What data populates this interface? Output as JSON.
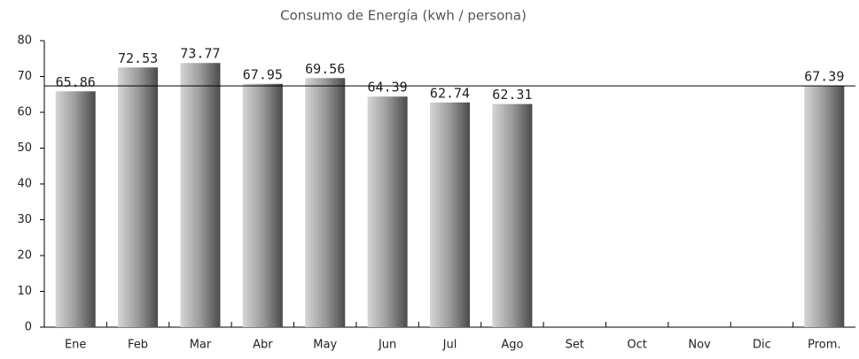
{
  "chart_data": {
    "type": "bar",
    "title": "Consumo de Energía (kwh / persona)",
    "categories": [
      "Ene",
      "Feb",
      "Mar",
      "Abr",
      "May",
      "Jun",
      "Jul",
      "Ago",
      "Set",
      "Oct",
      "Nov",
      "Dic",
      "Prom."
    ],
    "values": [
      65.86,
      72.53,
      73.77,
      67.95,
      69.56,
      64.39,
      62.74,
      62.31,
      null,
      null,
      null,
      null,
      67.39
    ],
    "color": "#8a8a8a",
    "ylim": [
      0,
      80
    ],
    "yticks": [
      0,
      10,
      20,
      30,
      40,
      50,
      60,
      70,
      80
    ],
    "grid": false
  }
}
